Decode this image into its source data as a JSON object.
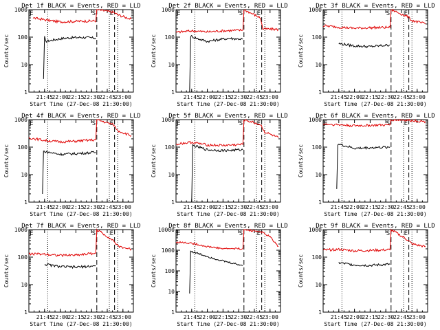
{
  "figure": {
    "title_template": "Det {det} BLACK = Events, RED = LLD",
    "xlabel": "Start Time (27-Dec-08 21:30:00)",
    "ylabel": "Counts/sec",
    "xticks": [
      "21:45",
      "22:00",
      "22:15",
      "22:30",
      "22:45",
      "23:00"
    ],
    "marker_labels": [
      "E",
      "S",
      "E"
    ]
  },
  "colors": {
    "events": "#000000",
    "lld": "#e00000",
    "axes": "#000000"
  },
  "chart_data": [
    {
      "type": "line",
      "det": "1f",
      "title": "Det 1f BLACK = Events, RED = LLD",
      "xlabel": "Start Time (27-Dec-08 21:30:00)",
      "ylabel": "Counts/sec",
      "yscale": "log",
      "ylim": [
        1,
        1000
      ],
      "yticks": [
        "1",
        "10",
        "100",
        "1000"
      ],
      "xticks": [
        "21:45",
        "22:00",
        "22:15",
        "22:30",
        "22:45",
        "23:00"
      ],
      "dotted_lines": [
        "21:48",
        "22:47",
        "22:55"
      ],
      "dashed_lines": [
        "22:35",
        "22:52"
      ],
      "series": [
        {
          "name": "Events",
          "color": "black",
          "points": [
            [
              "21:44",
              3
            ],
            [
              "21:45",
              100
            ],
            [
              "21:46",
              70
            ],
            [
              "22:00",
              88
            ],
            [
              "22:10",
              95
            ],
            [
              "22:20",
              98
            ],
            [
              "22:34",
              92
            ]
          ]
        },
        {
          "name": "LLD",
          "color": "red",
          "points": [
            [
              "21:34",
              500
            ],
            [
              "21:50",
              400
            ],
            [
              "22:00",
              360
            ],
            [
              "22:10",
              370
            ],
            [
              "22:20",
              380
            ],
            [
              "22:34",
              390
            ],
            [
              "22:35",
              1000
            ],
            [
              "22:51",
              800
            ],
            [
              "22:55",
              650
            ],
            [
              "23:08",
              450
            ]
          ]
        }
      ]
    },
    {
      "type": "line",
      "det": "2f",
      "title": "Det 2f BLACK = Events, RED = LLD",
      "xlabel": "Start Time (27-Dec-08 21:30:00)",
      "ylabel": "Counts/sec",
      "yscale": "log",
      "ylim": [
        1,
        1000
      ],
      "yticks": [
        "1",
        "10",
        "100",
        "1000"
      ],
      "xticks": [
        "21:45",
        "22:00",
        "22:15",
        "22:30",
        "22:45",
        "23:00"
      ],
      "dotted_lines": [
        "21:48",
        "22:47",
        "22:55"
      ],
      "dashed_lines": [
        "22:35",
        "22:52"
      ],
      "series": [
        {
          "name": "Events",
          "color": "black",
          "points": [
            [
              "21:43",
              1
            ],
            [
              "21:44",
              110
            ],
            [
              "21:50",
              90
            ],
            [
              "22:00",
              70
            ],
            [
              "22:10",
              80
            ],
            [
              "22:20",
              90
            ],
            [
              "22:34",
              85
            ]
          ]
        },
        {
          "name": "LLD",
          "color": "red",
          "points": [
            [
              "21:30",
              150
            ],
            [
              "21:45",
              170
            ],
            [
              "22:00",
              155
            ],
            [
              "22:15",
              170
            ],
            [
              "22:34",
              180
            ],
            [
              "22:35",
              1000
            ],
            [
              "22:51",
              500
            ],
            [
              "22:53",
              200
            ],
            [
              "23:08",
              190
            ]
          ]
        }
      ]
    },
    {
      "type": "line",
      "det": "3f",
      "title": "Det 3f BLACK = Events, RED = LLD",
      "xlabel": "Start Time (27-Dec-08 21:30:00)",
      "ylabel": "Counts/sec",
      "yscale": "log",
      "ylim": [
        1,
        1000
      ],
      "yticks": [
        "1",
        "10",
        "100",
        "1000"
      ],
      "xticks": [
        "21:45",
        "22:00",
        "22:15",
        "22:30",
        "22:45",
        "23:00"
      ],
      "dotted_lines": [
        "21:48",
        "22:47",
        "22:55"
      ],
      "dashed_lines": [
        "22:35",
        "22:52"
      ],
      "series": [
        {
          "name": "Events",
          "color": "black",
          "points": [
            [
              "21:45",
              58
            ],
            [
              "22:00",
              48
            ],
            [
              "22:15",
              45
            ],
            [
              "22:34",
              52
            ]
          ]
        },
        {
          "name": "LLD",
          "color": "red",
          "points": [
            [
              "21:30",
              260
            ],
            [
              "21:45",
              230
            ],
            [
              "22:00",
              210
            ],
            [
              "22:15",
              220
            ],
            [
              "22:34",
              225
            ],
            [
              "22:35",
              1000
            ],
            [
              "22:51",
              550
            ],
            [
              "22:55",
              400
            ],
            [
              "23:08",
              300
            ]
          ]
        }
      ]
    },
    {
      "type": "line",
      "det": "4f",
      "title": "Det 4f BLACK = Events, RED = LLD",
      "xlabel": "Start Time (27-Dec-08 21:30:00)",
      "ylabel": "Counts/sec",
      "yscale": "log",
      "ylim": [
        1,
        1000
      ],
      "yticks": [
        "1",
        "10",
        "100",
        "1000"
      ],
      "xticks": [
        "21:45",
        "22:00",
        "22:15",
        "22:30",
        "22:45",
        "23:00"
      ],
      "dotted_lines": [
        "21:48",
        "22:47",
        "22:55"
      ],
      "dashed_lines": [
        "22:35",
        "22:52"
      ],
      "series": [
        {
          "name": "Events",
          "color": "black",
          "points": [
            [
              "21:43",
              2
            ],
            [
              "21:44",
              70
            ],
            [
              "22:00",
              55
            ],
            [
              "22:15",
              58
            ],
            [
              "22:34",
              65
            ]
          ]
        },
        {
          "name": "LLD",
          "color": "red",
          "points": [
            [
              "21:30",
              220
            ],
            [
              "21:45",
              175
            ],
            [
              "22:00",
              155
            ],
            [
              "22:15",
              165
            ],
            [
              "22:34",
              185
            ],
            [
              "22:35",
              1000
            ],
            [
              "22:51",
              650
            ],
            [
              "22:55",
              400
            ],
            [
              "23:08",
              260
            ]
          ]
        }
      ]
    },
    {
      "type": "line",
      "det": "5f",
      "title": "Det 5f BLACK = Events, RED = LLD",
      "xlabel": "Start Time (27-Dec-08 21:30:00)",
      "ylabel": "Counts/sec",
      "yscale": "log",
      "ylim": [
        1,
        1000
      ],
      "yticks": [
        "1",
        "10",
        "100",
        "1000"
      ],
      "xticks": [
        "21:45",
        "22:00",
        "22:15",
        "22:30",
        "22:45",
        "23:00"
      ],
      "dotted_lines": [
        "21:48",
        "22:47",
        "22:55"
      ],
      "dashed_lines": [
        "22:35",
        "22:52"
      ],
      "series": [
        {
          "name": "Events",
          "color": "black",
          "points": [
            [
              "21:45",
              1
            ],
            [
              "21:46",
              115
            ],
            [
              "22:00",
              80
            ],
            [
              "22:15",
              75
            ],
            [
              "22:34",
              80
            ]
          ]
        },
        {
          "name": "LLD",
          "color": "red",
          "points": [
            [
              "21:30",
              130
            ],
            [
              "21:45",
              150
            ],
            [
              "22:00",
              120
            ],
            [
              "22:15",
              115
            ],
            [
              "22:34",
              125
            ],
            [
              "22:35",
              1000
            ],
            [
              "22:51",
              650
            ],
            [
              "22:55",
              350
            ],
            [
              "23:08",
              220
            ]
          ]
        }
      ]
    },
    {
      "type": "line",
      "det": "6f",
      "title": "Det 6f BLACK = Events, RED = LLD",
      "xlabel": "Start Time (27-Dec-08 21:30:00)",
      "ylabel": "Counts/sec",
      "yscale": "log",
      "ylim": [
        1,
        1000
      ],
      "yticks": [
        "1",
        "10",
        "100",
        "1000"
      ],
      "xticks": [
        "21:45",
        "22:00",
        "22:15",
        "22:30",
        "22:45",
        "23:00"
      ],
      "dotted_lines": [
        "21:48",
        "22:47",
        "22:55"
      ],
      "dashed_lines": [
        "22:35",
        "22:52"
      ],
      "series": [
        {
          "name": "Events",
          "color": "black",
          "points": [
            [
              "21:43",
              3
            ],
            [
              "21:44",
              130
            ],
            [
              "22:00",
              90
            ],
            [
              "22:15",
              95
            ],
            [
              "22:34",
              100
            ]
          ]
        },
        {
          "name": "LLD",
          "color": "red",
          "points": [
            [
              "21:30",
              700
            ],
            [
              "21:45",
              650
            ],
            [
              "22:00",
              600
            ],
            [
              "22:15",
              620
            ],
            [
              "22:34",
              640
            ],
            [
              "22:35",
              1000
            ],
            [
              "22:51",
              950
            ],
            [
              "23:00",
              900
            ],
            [
              "23:08",
              850
            ]
          ]
        }
      ]
    },
    {
      "type": "line",
      "det": "7f",
      "title": "Det 7f BLACK = Events, RED = LLD",
      "xlabel": "Start Time (27-Dec-08 21:30:00)",
      "ylabel": "Counts/sec",
      "yscale": "log",
      "ylim": [
        1,
        1000
      ],
      "yticks": [
        "1",
        "10",
        "100",
        "1000"
      ],
      "xticks": [
        "21:45",
        "22:00",
        "22:15",
        "22:30",
        "22:45",
        "23:00"
      ],
      "dotted_lines": [
        "21:48",
        "22:47",
        "22:55"
      ],
      "dashed_lines": [
        "22:35",
        "22:52"
      ],
      "series": [
        {
          "name": "Events",
          "color": "black",
          "points": [
            [
              "21:45",
              55
            ],
            [
              "22:00",
              45
            ],
            [
              "22:15",
              43
            ],
            [
              "22:34",
              48
            ]
          ]
        },
        {
          "name": "LLD",
          "color": "red",
          "points": [
            [
              "21:30",
              130
            ],
            [
              "21:45",
              130
            ],
            [
              "22:00",
              115
            ],
            [
              "22:15",
              120
            ],
            [
              "22:34",
              140
            ],
            [
              "22:35",
              1000
            ],
            [
              "22:51",
              400
            ],
            [
              "22:55",
              250
            ],
            [
              "23:08",
              190
            ]
          ]
        }
      ]
    },
    {
      "type": "line",
      "det": "8f",
      "title": "Det 8f BLACK = Events, RED = LLD",
      "xlabel": "Start Time (27-Dec-08 21:30:00)",
      "ylabel": "Counts/sec",
      "yscale": "log",
      "ylim": [
        1,
        10000
      ],
      "yticks": [
        "1",
        "10",
        "100",
        "1000",
        "10000"
      ],
      "xticks": [
        "21:45",
        "22:00",
        "22:15",
        "22:30",
        "22:45",
        "23:00"
      ],
      "dotted_lines": [
        "21:48",
        "22:47",
        "22:55"
      ],
      "dashed_lines": [
        "22:35",
        "22:52"
      ],
      "series": [
        {
          "name": "Events",
          "color": "black",
          "points": [
            [
              "21:43",
              8
            ],
            [
              "21:44",
              900
            ],
            [
              "22:00",
              500
            ],
            [
              "22:15",
              300
            ],
            [
              "22:34",
              180
            ]
          ]
        },
        {
          "name": "LLD",
          "color": "red",
          "points": [
            [
              "21:30",
              2500
            ],
            [
              "21:45",
              2200
            ],
            [
              "22:00",
              1500
            ],
            [
              "22:15",
              1200
            ],
            [
              "22:34",
              1200
            ],
            [
              "22:35",
              10000
            ],
            [
              "22:51",
              8000
            ],
            [
              "23:00",
              4500
            ],
            [
              "23:08",
              1500
            ]
          ]
        }
      ]
    },
    {
      "type": "line",
      "det": "9f",
      "title": "Det 9f BLACK = Events, RED = LLD",
      "xlabel": "Start Time (27-Dec-08 21:30:00)",
      "ylabel": "Counts/sec",
      "yscale": "log",
      "ylim": [
        1,
        1000
      ],
      "yticks": [
        "1",
        "10",
        "100",
        "1000"
      ],
      "xticks": [
        "21:45",
        "22:00",
        "22:15",
        "22:30",
        "22:45",
        "23:00"
      ],
      "dotted_lines": [
        "21:48",
        "22:47",
        "22:55"
      ],
      "dashed_lines": [
        "22:35",
        "22:52"
      ],
      "series": [
        {
          "name": "Events",
          "color": "black",
          "points": [
            [
              "21:45",
              62
            ],
            [
              "22:00",
              52
            ],
            [
              "22:15",
              50
            ],
            [
              "22:34",
              55
            ]
          ]
        },
        {
          "name": "LLD",
          "color": "red",
          "points": [
            [
              "21:30",
              180
            ],
            [
              "21:45",
              190
            ],
            [
              "22:00",
              170
            ],
            [
              "22:15",
              175
            ],
            [
              "22:34",
              185
            ],
            [
              "22:35",
              1000
            ],
            [
              "22:51",
              420
            ],
            [
              "22:55",
              300
            ],
            [
              "23:08",
              240
            ]
          ]
        }
      ]
    }
  ]
}
